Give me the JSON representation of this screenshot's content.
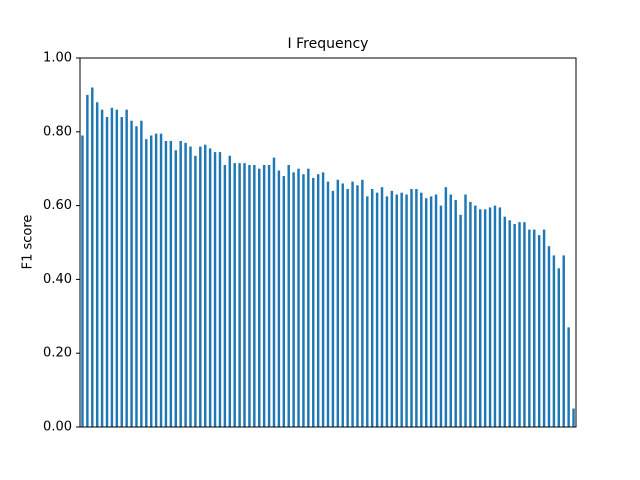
{
  "chart_data": {
    "type": "bar",
    "title": "I Frequency",
    "y_label": "F1 score",
    "categories": [
      null,
      null,
      null,
      null,
      null,
      null,
      null,
      null,
      null,
      null,
      null,
      null,
      null,
      null,
      null,
      null,
      null,
      null,
      null,
      null,
      null,
      null,
      null,
      null,
      null,
      null,
      null,
      null,
      null,
      null,
      null,
      null,
      null,
      null,
      null,
      null,
      null,
      null,
      null,
      null,
      null,
      null,
      null,
      null,
      null,
      null,
      null,
      null,
      null,
      null,
      null,
      null,
      null,
      null,
      null,
      null,
      null,
      null,
      null,
      null,
      null,
      null,
      null,
      null,
      null,
      null,
      null,
      null,
      null,
      null,
      null,
      null,
      null,
      null,
      null,
      null,
      null,
      null,
      null,
      null,
      null,
      null,
      null,
      null,
      null,
      null,
      null,
      null,
      null,
      null,
      null,
      null,
      null,
      null,
      null,
      null,
      null,
      null,
      null,
      null,
      null
    ],
    "values": [
      0.79,
      0.9,
      0.92,
      0.88,
      0.86,
      0.84,
      0.865,
      0.86,
      0.84,
      0.86,
      0.83,
      0.815,
      0.83,
      0.78,
      0.79,
      0.795,
      0.795,
      0.775,
      0.775,
      0.75,
      0.775,
      0.77,
      0.76,
      0.735,
      0.76,
      0.765,
      0.755,
      0.745,
      0.745,
      0.71,
      0.735,
      0.715,
      0.715,
      0.715,
      0.71,
      0.71,
      0.7,
      0.71,
      0.71,
      0.73,
      0.695,
      0.68,
      0.71,
      0.69,
      0.7,
      0.685,
      0.7,
      0.675,
      0.685,
      0.69,
      0.665,
      0.64,
      0.67,
      0.66,
      0.645,
      0.665,
      0.655,
      0.67,
      0.625,
      0.645,
      0.635,
      0.65,
      0.625,
      0.64,
      0.63,
      0.635,
      0.63,
      0.645,
      0.645,
      0.635,
      0.62,
      0.625,
      0.63,
      0.6,
      0.65,
      0.63,
      0.615,
      0.575,
      0.63,
      0.61,
      0.6,
      0.59,
      0.59,
      0.595,
      0.6,
      0.595,
      0.57,
      0.56,
      0.55,
      0.555,
      0.555,
      0.535,
      0.535,
      0.52,
      0.535,
      0.49,
      0.465,
      0.43,
      0.465,
      0.27,
      0.05
    ],
    "color": "#1f77b4",
    "ylim": [
      0,
      1
    ],
    "yticks": [
      {
        "value": 0,
        "label": "0.00"
      },
      {
        "value": 0.2,
        "label": "0.20"
      },
      {
        "value": 0.4,
        "label": "0.40"
      },
      {
        "value": 0.6,
        "label": "0.60"
      },
      {
        "value": 0.8,
        "label": "0.80"
      },
      {
        "value": 1,
        "label": "1.00"
      }
    ],
    "grid": false
  }
}
